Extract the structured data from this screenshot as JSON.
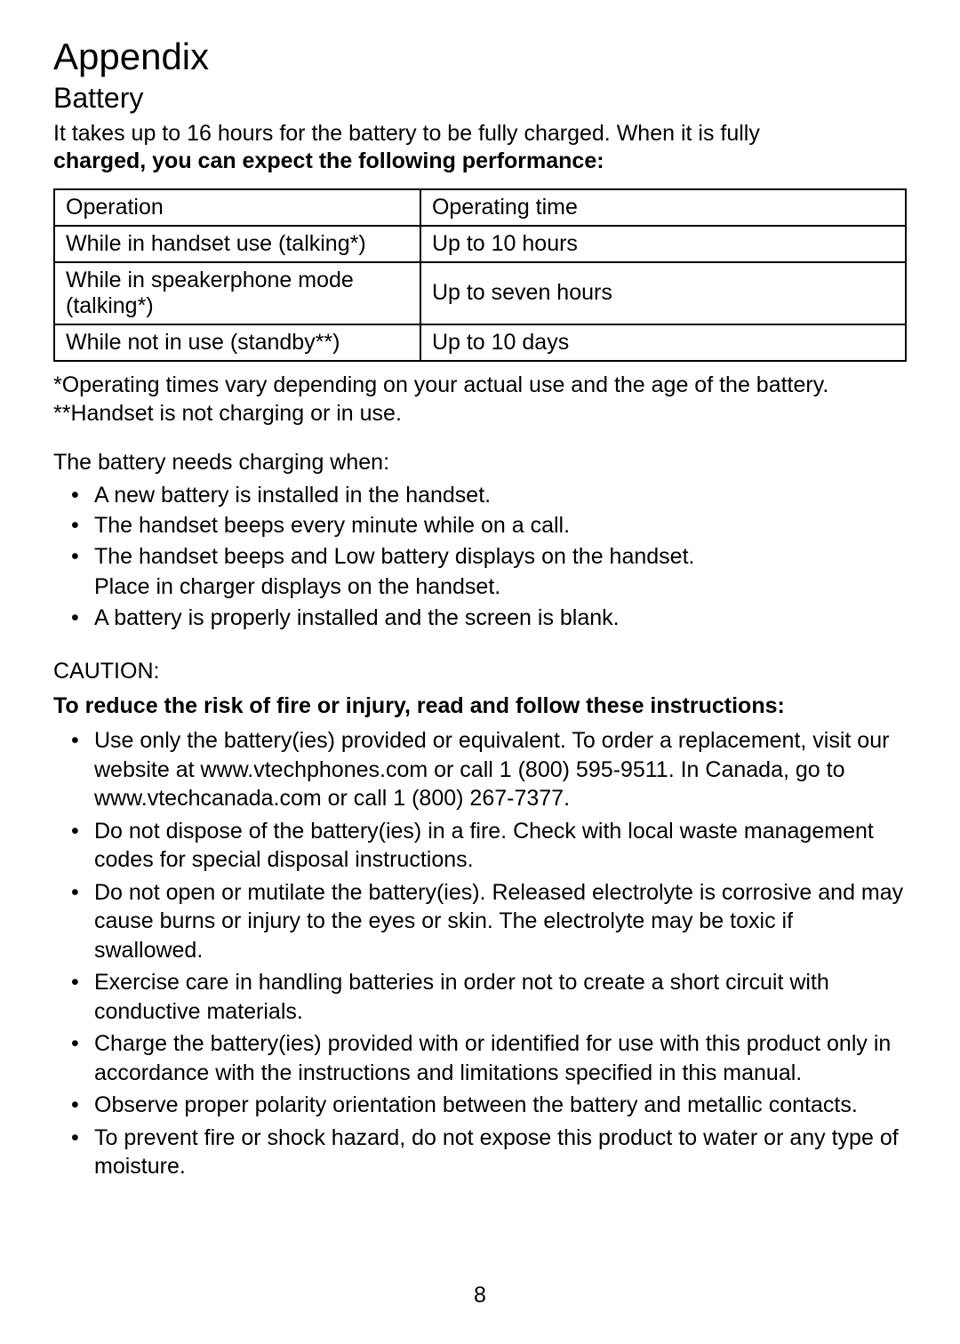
{
  "heading1": "Appendix",
  "heading2": "Battery",
  "intro_line1": "It takes up to 16 hours for the battery to be fully charged. When it is fully",
  "intro_line2": "charged, you can expect the following performance:",
  "table": {
    "header": {
      "col1": "Operation",
      "col2": "Operating time"
    },
    "rows": [
      {
        "col1": "While in handset use (talking*)",
        "col2": "Up to 10 hours"
      },
      {
        "col1": "While in speakerphone mode (talking*)",
        "col2": "Up to seven hours"
      },
      {
        "col1": "While not in use (standby**)",
        "col2": "Up to 10 days"
      }
    ],
    "col1_width": "43%",
    "col2_width": "57%"
  },
  "footnote1": "*Operating times vary depending on your actual use and the age of the battery.",
  "footnote2": "**Handset is not charging or in use.",
  "charging_lead": "The battery needs charging when:",
  "charging_items": [
    "A new battery is installed in the handset.",
    "The handset beeps every minute while on a call.",
    "The handset beeps and Low battery   displays on the handset."
  ],
  "charging_sub": "Place in charger   displays on the handset.",
  "charging_items2": [
    "A battery is properly installed and the screen is blank."
  ],
  "caution_label": "CAUTION:",
  "caution_bold": "To reduce the risk of fire or injury, read and follow these instructions:",
  "caution_items": [
    "Use only the battery(ies) provided or equivalent. To order a replacement, visit our website at www.vtechphones.com or call 1 (800) 595-9511. In Canada, go to www.vtechcanada.com or call 1 (800) 267-7377.",
    "Do not dispose of the battery(ies) in a fire. Check with local waste management codes for special disposal instructions.",
    "Do not open or mutilate the battery(ies). Released electrolyte is corrosive and may cause burns or injury to the eyes or skin. The electrolyte may be toxic if swallowed.",
    "Exercise care in handling batteries in order not to create a short circuit with conductive materials.",
    "Charge the battery(ies) provided with or identified for use with this product only in accordance with the instructions and limitations specified in this manual.",
    "Observe proper polarity orientation between the battery and metallic contacts.",
    "To prevent fire or shock hazard, do not expose this product to water or any type of moisture."
  ],
  "page_number": "8"
}
